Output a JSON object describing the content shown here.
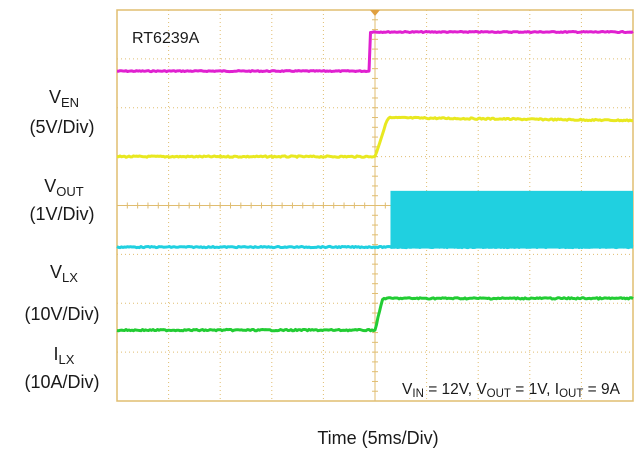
{
  "chart_data": {
    "type": "line",
    "title": "RT6239A",
    "xlabel": "Time",
    "xlabel_scale": "(5ms/Div)",
    "x_divisions": 10,
    "y_divisions": 8,
    "grid": true,
    "trigger_marker_x_div": 5,
    "annotation": {
      "parts": [
        {
          "main": "V",
          "sub": "IN",
          "rest": " = 12V, "
        },
        {
          "main": "V",
          "sub": "OUT",
          "rest": " = 1V, "
        },
        {
          "main": "I",
          "sub": "OUT",
          "rest": " = 9A"
        }
      ]
    },
    "channels": [
      {
        "name": "EN",
        "main": "V",
        "sub": "EN",
        "scale": "(5V/Div)",
        "color": "#e020d0",
        "level_before_div": 1.25,
        "level_after_div": 0.45,
        "step_at_div": 4.9,
        "ramp_div": 0.0,
        "noise": 0.5,
        "burst": false
      },
      {
        "name": "OUT",
        "main": "V",
        "sub": "OUT",
        "scale": "(1V/Div)",
        "color": "#e8e820",
        "level_before_div": 3.0,
        "level_after_div": 2.2,
        "after_slope": 0.012,
        "step_at_div": 5.0,
        "ramp_div": 0.25,
        "noise": 0.7,
        "burst": false
      },
      {
        "name": "LX",
        "main": "V",
        "sub": "LX",
        "scale": "(10V/Div)",
        "color": "#20d0e0",
        "level_before_div": 4.85,
        "level_after_div": 4.85,
        "burst_top_div": 3.7,
        "step_at_div": 5.3,
        "ramp_div": 0.0,
        "noise": 0.6,
        "burst": true
      },
      {
        "name": "LX_current",
        "main": "I",
        "sub": "LX",
        "scale": "(10A/Div)",
        "color": "#22cc33",
        "level_before_div": 6.55,
        "level_after_div": 5.9,
        "step_at_div": 5.0,
        "ramp_div": 0.15,
        "noise": 0.7,
        "burst": false
      }
    ]
  }
}
